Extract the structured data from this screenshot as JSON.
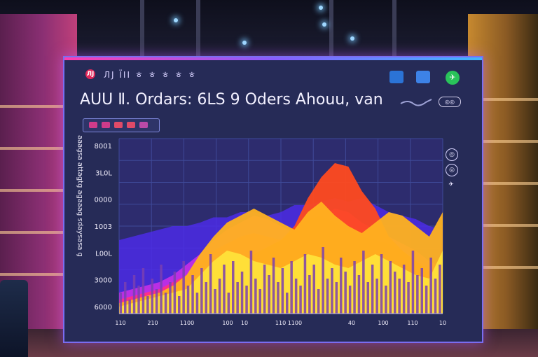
{
  "header": {
    "brand_icon": "ЛЈ",
    "nav_text": "ЛЈ ΪΙΙ ㅎ ㅎ ㅎ ㅎ ㅎ",
    "tools": [
      "bar-chart-icon",
      "card-icon",
      "share-icon"
    ],
    "share_glyph": "✈"
  },
  "title": "AUU Ⅱ. Ordars: 6LS 9 Oders  Ahouu, van",
  "title_badge": "◎◎",
  "side_icons": [
    "◎",
    "◎",
    "✈"
  ],
  "chart_data": {
    "type": "area",
    "ylabel": "ɓ ɐsɐsʎɐps ɓɐɐɐƃɐ ɓʇƃɐʇʇɐ ɐsɓɐɐɐ",
    "y_ticks": [
      "8001",
      "3L0L",
      "0000",
      "1003",
      "L00L",
      "3000",
      "6000"
    ],
    "x_ticks": [
      "110",
      "210",
      "1100",
      "100",
      "10",
      "110 1100",
      "40",
      "100",
      "110",
      "10"
    ],
    "series": [
      {
        "color": "#4c2be6",
        "values": [
          0.42,
          0.44,
          0.46,
          0.48,
          0.5,
          0.5,
          0.52,
          0.55,
          0.55,
          0.58,
          0.58,
          0.56,
          0.58,
          0.62,
          0.62,
          0.64,
          0.66,
          0.64,
          0.66,
          0.62,
          0.58,
          0.56,
          0.54,
          0.5,
          0.48
        ]
      },
      {
        "color": "#c12ee6",
        "values": [
          0.12,
          0.14,
          0.16,
          0.18,
          0.22,
          0.28,
          0.34,
          0.42,
          0.48,
          0.52,
          0.56,
          0.54,
          0.5,
          0.46,
          0.5,
          0.56,
          0.6,
          0.58,
          0.52,
          0.48,
          0.44,
          0.4,
          0.36,
          0.3,
          0.26
        ]
      },
      {
        "color": "#ff2f86",
        "values": [
          0.08,
          0.1,
          0.12,
          0.14,
          0.18,
          0.22,
          0.3,
          0.36,
          0.4,
          0.44,
          0.46,
          0.44,
          0.42,
          0.48,
          0.54,
          0.56,
          0.52,
          0.48,
          0.44,
          0.42,
          0.4,
          0.36,
          0.3,
          0.26,
          0.2
        ]
      },
      {
        "color": "#ff4a1f",
        "values": [
          0.06,
          0.08,
          0.1,
          0.12,
          0.14,
          0.16,
          0.2,
          0.24,
          0.26,
          0.3,
          0.34,
          0.38,
          0.42,
          0.5,
          0.66,
          0.78,
          0.86,
          0.84,
          0.7,
          0.6,
          0.44,
          0.36,
          0.3,
          0.24,
          0.2
        ]
      },
      {
        "color": "#ffb21f",
        "values": [
          0.06,
          0.08,
          0.1,
          0.12,
          0.16,
          0.22,
          0.34,
          0.44,
          0.52,
          0.56,
          0.6,
          0.56,
          0.52,
          0.48,
          0.58,
          0.64,
          0.56,
          0.5,
          0.46,
          0.52,
          0.58,
          0.56,
          0.5,
          0.44,
          0.58
        ]
      },
      {
        "color": "#ffe23a",
        "values": [
          0.04,
          0.06,
          0.08,
          0.1,
          0.12,
          0.14,
          0.22,
          0.3,
          0.36,
          0.34,
          0.3,
          0.28,
          0.26,
          0.3,
          0.34,
          0.32,
          0.28,
          0.26,
          0.3,
          0.34,
          0.3,
          0.26,
          0.22,
          0.2,
          0.36
        ]
      }
    ],
    "bars": [
      0.12,
      0.18,
      0.08,
      0.22,
      0.16,
      0.26,
      0.1,
      0.2,
      0.14,
      0.28,
      0.12,
      0.18,
      0.24,
      0.1,
      0.3,
      0.16,
      0.22,
      0.12,
      0.26,
      0.18,
      0.34,
      0.14,
      0.2,
      0.28,
      0.12,
      0.3,
      0.18,
      0.24,
      0.16,
      0.36,
      0.2,
      0.14,
      0.28,
      0.22,
      0.32,
      0.18,
      0.26,
      0.12,
      0.3,
      0.2,
      0.16,
      0.34,
      0.22,
      0.28,
      0.14,
      0.38,
      0.2,
      0.26,
      0.18,
      0.32,
      0.24,
      0.16,
      0.3,
      0.22,
      0.36,
      0.18,
      0.28,
      0.2,
      0.34,
      0.16,
      0.3,
      0.24,
      0.2,
      0.28,
      0.18,
      0.36,
      0.22,
      0.26,
      0.16,
      0.32,
      0.2,
      0.28
    ]
  }
}
